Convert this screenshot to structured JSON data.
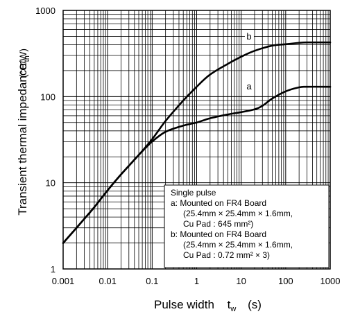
{
  "chart_data": {
    "type": "line",
    "xlabel": "Pulse width",
    "xlabel_symbol": "t",
    "xlabel_symbol_sub": "w",
    "xlabel_unit": "(s)",
    "ylabel": "Transient thermal impedance",
    "ylabel_symbol": "r",
    "ylabel_symbol_sub": "th",
    "ylabel_unit": "(°C/W)",
    "x_scale": "log",
    "y_scale": "log",
    "xlim": [
      0.001,
      1000
    ],
    "ylim": [
      1,
      1000
    ],
    "x_ticks": [
      "0.001",
      "0.01",
      "0.1",
      "1",
      "10",
      "100",
      "1000"
    ],
    "y_ticks": [
      "1",
      "10",
      "100",
      "1000"
    ],
    "grid": true,
    "series": [
      {
        "name": "a",
        "x": [
          0.001,
          0.002,
          0.005,
          0.01,
          0.02,
          0.05,
          0.1,
          0.2,
          0.5,
          1,
          2,
          5,
          10,
          20,
          30,
          50,
          100,
          200,
          300,
          1000
        ],
        "y": [
          2,
          3.0,
          5.2,
          8.2,
          12.5,
          21,
          30,
          39,
          46,
          50,
          56,
          62,
          66,
          71,
          78,
          95,
          115,
          128,
          130,
          130
        ]
      },
      {
        "name": "b",
        "x": [
          0.001,
          0.002,
          0.005,
          0.01,
          0.02,
          0.05,
          0.1,
          0.2,
          0.5,
          1,
          2,
          5,
          10,
          20,
          50,
          100,
          200,
          300,
          1000
        ],
        "y": [
          2,
          3.0,
          5.2,
          8.2,
          12.5,
          21,
          32,
          52,
          90,
          130,
          180,
          240,
          290,
          340,
          390,
          405,
          420,
          425,
          425
        ]
      }
    ],
    "legend": {
      "placement": "bottom-right",
      "lines": [
        "Single pulse",
        "a: Mounted on FR4 Board",
        "(25.4mm × 25.4mm × 1.6mm,",
        "Cu Pad : 645 mm²)",
        "b: Mounted on FR4 Board",
        "(25.4mm × 25.4mm × 1.6mm,",
        "Cu Pad : 0.72 mm² × 3)"
      ]
    }
  }
}
